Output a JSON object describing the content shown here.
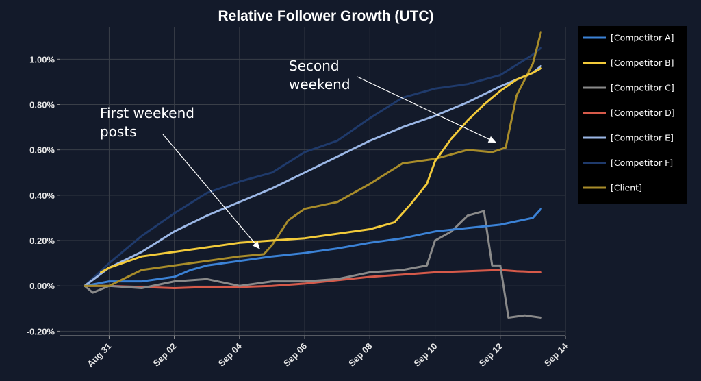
{
  "chart_data": {
    "type": "line",
    "title": "Relative Follower Growth (UTC)",
    "xlabel": "",
    "ylabel": "",
    "x_ticks": [
      "Aug 31",
      "Sep 02",
      "Sep 04",
      "Sep 06",
      "Sep 08",
      "Sep 10",
      "Sep 12",
      "Sep 14"
    ],
    "x_range": [
      "2023-08-29T12:00",
      "2023-09-14T00:00"
    ],
    "y_ticks": [
      "-0.20%",
      "0.00%",
      "0.20%",
      "0.40%",
      "0.60%",
      "0.80%",
      "1.00%"
    ],
    "ylim": [
      -0.22,
      1.14
    ],
    "grid": true,
    "legend_position": "right",
    "series": [
      {
        "name": "[Competitor A]",
        "color": "#3b82d6",
        "x": [
          "2023-08-30T06:00",
          "2023-08-31T00:00",
          "2023-09-01T00:00",
          "2023-09-02T00:00",
          "2023-09-02T12:00",
          "2023-09-03T00:00",
          "2023-09-04T00:00",
          "2023-09-05T00:00",
          "2023-09-06T00:00",
          "2023-09-07T00:00",
          "2023-09-08T00:00",
          "2023-09-09T00:00",
          "2023-09-10T00:00",
          "2023-09-11T00:00",
          "2023-09-12T00:00",
          "2023-09-12T12:00",
          "2023-09-13T00:00",
          "2023-09-13T06:00"
        ],
        "values": [
          0.0,
          0.02,
          0.02,
          0.04,
          0.07,
          0.09,
          0.11,
          0.13,
          0.145,
          0.165,
          0.19,
          0.21,
          0.24,
          0.255,
          0.27,
          0.285,
          0.3,
          0.34
        ]
      },
      {
        "name": "[Competitor B]",
        "color": "#f2ca3a",
        "x": [
          "2023-08-30T18:00",
          "2023-08-31T00:00",
          "2023-09-01T00:00",
          "2023-09-02T00:00",
          "2023-09-03T00:00",
          "2023-09-04T00:00",
          "2023-09-05T00:00",
          "2023-09-06T00:00",
          "2023-09-07T00:00",
          "2023-09-08T00:00",
          "2023-09-08T18:00",
          "2023-09-09T06:00",
          "2023-09-09T18:00",
          "2023-09-10T00:00",
          "2023-09-10T12:00",
          "2023-09-11T00:00",
          "2023-09-11T12:00",
          "2023-09-12T00:00",
          "2023-09-12T12:00",
          "2023-09-13T00:00",
          "2023-09-13T06:00"
        ],
        "values": [
          0.06,
          0.08,
          0.13,
          0.15,
          0.17,
          0.19,
          0.2,
          0.21,
          0.23,
          0.25,
          0.28,
          0.36,
          0.45,
          0.55,
          0.65,
          0.73,
          0.8,
          0.86,
          0.91,
          0.94,
          0.96
        ]
      },
      {
        "name": "[Competitor C]",
        "color": "#8a8a8a",
        "x": [
          "2023-08-30T06:00",
          "2023-08-30T12:00",
          "2023-08-31T00:00",
          "2023-09-01T00:00",
          "2023-09-02T00:00",
          "2023-09-03T00:00",
          "2023-09-04T00:00",
          "2023-09-05T00:00",
          "2023-09-06T00:00",
          "2023-09-07T00:00",
          "2023-09-08T00:00",
          "2023-09-09T00:00",
          "2023-09-09T18:00",
          "2023-09-10T00:00",
          "2023-09-10T12:00",
          "2023-09-11T00:00",
          "2023-09-11T06:00",
          "2023-09-11T12:00",
          "2023-09-11T18:00",
          "2023-09-12T00:00",
          "2023-09-12T06:00",
          "2023-09-12T18:00",
          "2023-09-13T06:00"
        ],
        "values": [
          0.0,
          -0.03,
          0.0,
          -0.01,
          0.02,
          0.03,
          0.0,
          0.02,
          0.02,
          0.03,
          0.06,
          0.07,
          0.09,
          0.2,
          0.24,
          0.31,
          0.32,
          0.33,
          0.09,
          0.09,
          -0.14,
          -0.13,
          -0.14
        ]
      },
      {
        "name": "[Competitor D]",
        "color": "#d65a4a",
        "x": [
          "2023-08-30T06:00",
          "2023-08-31T00:00",
          "2023-09-01T00:00",
          "2023-09-02T00:00",
          "2023-09-03T00:00",
          "2023-09-04T00:00",
          "2023-09-05T00:00",
          "2023-09-06T00:00",
          "2023-09-07T00:00",
          "2023-09-08T00:00",
          "2023-09-09T00:00",
          "2023-09-10T00:00",
          "2023-09-11T00:00",
          "2023-09-12T00:00",
          "2023-09-12T12:00",
          "2023-09-13T06:00"
        ],
        "values": [
          0.0,
          0.0,
          -0.005,
          -0.01,
          -0.005,
          -0.005,
          0.0,
          0.01,
          0.025,
          0.04,
          0.05,
          0.06,
          0.065,
          0.07,
          0.065,
          0.06
        ]
      },
      {
        "name": "[Competitor E]",
        "color": "#9bb7e6",
        "x": [
          "2023-08-30T06:00",
          "2023-08-31T00:00",
          "2023-09-01T00:00",
          "2023-09-02T00:00",
          "2023-09-03T00:00",
          "2023-09-04T00:00",
          "2023-09-05T00:00",
          "2023-09-06T00:00",
          "2023-09-07T00:00",
          "2023-09-08T00:00",
          "2023-09-09T00:00",
          "2023-09-10T00:00",
          "2023-09-11T00:00",
          "2023-09-12T00:00",
          "2023-09-13T00:00",
          "2023-09-13T06:00"
        ],
        "values": [
          0.0,
          0.08,
          0.15,
          0.24,
          0.31,
          0.37,
          0.43,
          0.5,
          0.57,
          0.64,
          0.7,
          0.75,
          0.81,
          0.88,
          0.94,
          0.97
        ]
      },
      {
        "name": "[Competitor F]",
        "color": "#1f3a6b",
        "x": [
          "2023-08-30T06:00",
          "2023-08-31T00:00",
          "2023-09-01T00:00",
          "2023-09-02T00:00",
          "2023-09-03T00:00",
          "2023-09-04T00:00",
          "2023-09-05T00:00",
          "2023-09-06T00:00",
          "2023-09-07T00:00",
          "2023-09-08T00:00",
          "2023-09-09T00:00",
          "2023-09-10T00:00",
          "2023-09-11T00:00",
          "2023-09-12T00:00",
          "2023-09-13T00:00",
          "2023-09-13T06:00"
        ],
        "values": [
          0.0,
          0.1,
          0.22,
          0.32,
          0.41,
          0.46,
          0.5,
          0.59,
          0.64,
          0.74,
          0.83,
          0.87,
          0.89,
          0.93,
          1.02,
          1.05
        ]
      },
      {
        "name": "[Client]",
        "color": "#a88c2a",
        "x": [
          "2023-08-30T06:00",
          "2023-08-31T00:00",
          "2023-09-01T00:00",
          "2023-09-02T00:00",
          "2023-09-03T00:00",
          "2023-09-04T00:00",
          "2023-09-04T18:00",
          "2023-09-05T00:00",
          "2023-09-05T12:00",
          "2023-09-06T00:00",
          "2023-09-07T00:00",
          "2023-09-08T00:00",
          "2023-09-09T00:00",
          "2023-09-10T00:00",
          "2023-09-11T00:00",
          "2023-09-11T18:00",
          "2023-09-12T04:00",
          "2023-09-12T12:00",
          "2023-09-13T00:00",
          "2023-09-13T06:00"
        ],
        "values": [
          0.0,
          0.0,
          0.07,
          0.09,
          0.11,
          0.13,
          0.14,
          0.18,
          0.29,
          0.34,
          0.37,
          0.45,
          0.54,
          0.56,
          0.6,
          0.59,
          0.61,
          0.84,
          0.98,
          1.12
        ]
      }
    ],
    "annotations": [
      {
        "lines": [
          "First weekend",
          "posts"
        ],
        "point_x": "2023-09-04T18:00",
        "point_y": 0.15
      },
      {
        "lines": [
          "Second",
          "weekend"
        ],
        "point_x": "2023-09-12T00:00",
        "point_y": 0.62
      }
    ]
  }
}
